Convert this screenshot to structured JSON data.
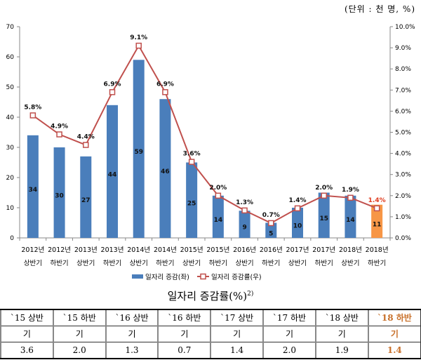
{
  "unit_label": "(단위 : 천 명, %)",
  "chart_data": {
    "type": "bar+line",
    "categories": [
      [
        "2012년",
        "상반기"
      ],
      [
        "2012년",
        "하반기"
      ],
      [
        "2013년",
        "상반기"
      ],
      [
        "2013년",
        "하반기"
      ],
      [
        "2014년",
        "상반기"
      ],
      [
        "2014년",
        "하반기"
      ],
      [
        "2015년",
        "상반기"
      ],
      [
        "2015년",
        "하반기"
      ],
      [
        "2016년",
        "상반기"
      ],
      [
        "2016년",
        "하반기"
      ],
      [
        "2017년",
        "상반기"
      ],
      [
        "2017년",
        "하반기"
      ],
      [
        "2018년",
        "상반기"
      ],
      [
        "2018년",
        "하반기"
      ]
    ],
    "series": [
      {
        "name": "일자리 증감(좌)",
        "type": "bar",
        "axis": "left",
        "values": [
          34,
          30,
          27,
          44,
          59,
          46,
          25,
          14,
          9,
          5,
          10,
          15,
          14,
          11
        ],
        "color": "#4a7ebb",
        "highlight_color": "#f79646"
      },
      {
        "name": "일자리 증감률(우)",
        "type": "line",
        "axis": "right",
        "values": [
          5.8,
          4.9,
          4.4,
          6.9,
          9.1,
          6.9,
          3.6,
          2.0,
          1.3,
          0.7,
          1.4,
          2.0,
          1.9,
          1.4
        ],
        "labels": [
          "5.8%",
          "4.9%",
          "4.4%",
          "6.9%",
          "9.1%",
          "6.9%",
          "3.6%",
          "2.0%",
          "1.3%",
          "0.7%",
          "1.4%",
          "2.0%",
          "1.9%",
          "1.4%"
        ],
        "color": "#c0504d",
        "highlight_label_color": "#e03c1e"
      }
    ],
    "y_left": {
      "range": [
        0,
        70
      ],
      "ticks": [
        "0",
        "10",
        "20",
        "30",
        "40",
        "50",
        "60",
        "70"
      ]
    },
    "y_right": {
      "range": [
        0,
        10
      ],
      "ticks": [
        "0.0%",
        "1.0%",
        "2.0%",
        "3.0%",
        "4.0%",
        "5.0%",
        "6.0%",
        "7.0%",
        "8.0%",
        "9.0%",
        "10.0%"
      ]
    },
    "legend": "bottom"
  },
  "table": {
    "title": "일자리 증감률(%)",
    "title_sup": "2)",
    "headers": [
      [
        "`15 상반",
        "기"
      ],
      [
        "`15 하반",
        "기"
      ],
      [
        "`16 상반",
        "기"
      ],
      [
        "`16 하반",
        "기"
      ],
      [
        "`17 상반",
        "기"
      ],
      [
        "`17 하반",
        "기"
      ],
      [
        "`18 상반",
        "기"
      ],
      [
        "`18 하반",
        "기"
      ]
    ],
    "values": [
      "3.6",
      "2.0",
      "1.3",
      "0.7",
      "1.4",
      "2.0",
      "1.9",
      "1.4"
    ]
  }
}
